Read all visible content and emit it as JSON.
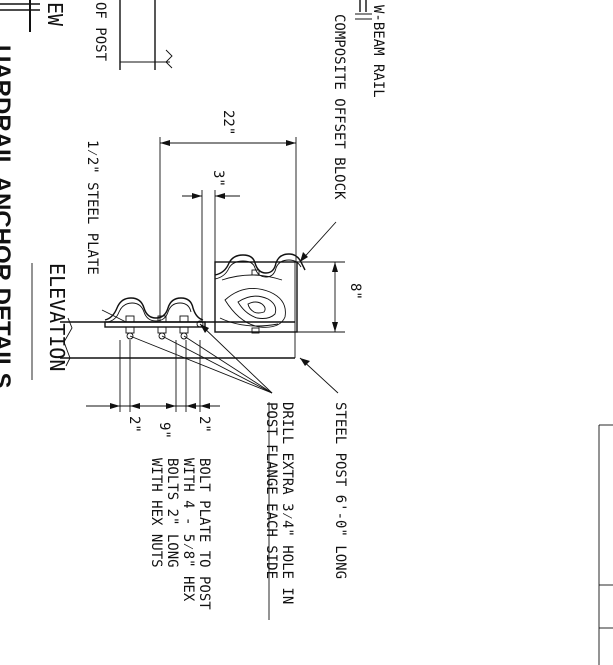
{
  "labels": {
    "w_beam_rail": "W-BEAM RAIL",
    "composite_offset_block": "COMPOSITE OFFSET BLOCK",
    "steel_post": "STEEL POST 6'-0\" LONG",
    "drill_line1": "DRILL EXTRA 3⁄4\" HOLE IN",
    "drill_line2": "POST FLANGE EACH SIDE",
    "bolt_line1": "BOLT PLATE TO POST",
    "bolt_line2": "WITH 4 - 5⁄8\" HEX",
    "bolt_line3": "BOLTS 2\" LONG",
    "bolt_line4": "WITH HEX NUTS",
    "steel_plate": "1⁄2\" STEEL PLATE",
    "elevation": "ELEVATION",
    "title_partial": "UARDRAIL ANCHOR DETAILS",
    "view_partial": "EW",
    "of_post_partial": "OF POST"
  },
  "dimensions": {
    "d22": "22\"",
    "d3": "3\"",
    "d8": "8\"",
    "d2a": "2\"",
    "d9": "9\"",
    "d2b": "2\""
  }
}
